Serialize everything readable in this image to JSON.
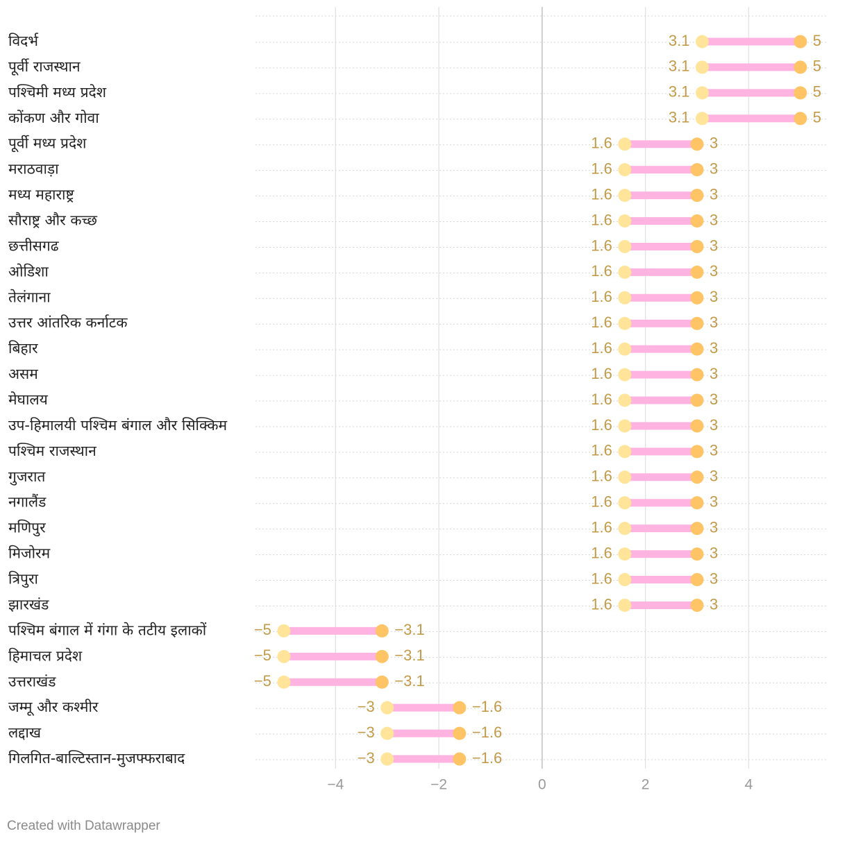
{
  "chart_data": {
    "type": "range-dot",
    "title": "",
    "xlabel": "",
    "ylabel": "",
    "xlim": [
      -5.55,
      5.5
    ],
    "xticks": [
      -4,
      -2,
      0,
      2,
      4
    ],
    "xtick_labels": [
      "−4",
      "−2",
      "0",
      "2",
      "4"
    ],
    "colors": {
      "start_dot": "#ffe49a",
      "end_dot": "#ffc466",
      "range_bar": "#ffb3e0",
      "value_label": "#c29a48",
      "row_label": "#222222"
    },
    "rows": [
      {
        "label": "विदर्भ",
        "start": 3.1,
        "end": 5,
        "start_label": "3.1",
        "end_label": "5"
      },
      {
        "label": "पूर्वी राजस्थान",
        "start": 3.1,
        "end": 5,
        "start_label": "3.1",
        "end_label": "5"
      },
      {
        "label": "पश्चिमी मध्य प्रदेश",
        "start": 3.1,
        "end": 5,
        "start_label": "3.1",
        "end_label": "5"
      },
      {
        "label": "कोंकण और गोवा",
        "start": 3.1,
        "end": 5,
        "start_label": "3.1",
        "end_label": "5"
      },
      {
        "label": "पूर्वी मध्य प्रदेश",
        "start": 1.6,
        "end": 3,
        "start_label": "1.6",
        "end_label": "3"
      },
      {
        "label": "मराठवाड़ा",
        "start": 1.6,
        "end": 3,
        "start_label": "1.6",
        "end_label": "3"
      },
      {
        "label": "मध्य महाराष्ट्र",
        "start": 1.6,
        "end": 3,
        "start_label": "1.6",
        "end_label": "3"
      },
      {
        "label": "सौराष्ट्र और कच्छ",
        "start": 1.6,
        "end": 3,
        "start_label": "1.6",
        "end_label": "3"
      },
      {
        "label": "छत्तीसगढ",
        "start": 1.6,
        "end": 3,
        "start_label": "1.6",
        "end_label": "3"
      },
      {
        "label": "ओडिशा",
        "start": 1.6,
        "end": 3,
        "start_label": "1.6",
        "end_label": "3"
      },
      {
        "label": "तेलंगाना",
        "start": 1.6,
        "end": 3,
        "start_label": "1.6",
        "end_label": "3"
      },
      {
        "label": "उत्तर आंतरिक कर्नाटक",
        "start": 1.6,
        "end": 3,
        "start_label": "1.6",
        "end_label": "3"
      },
      {
        "label": "बिहार",
        "start": 1.6,
        "end": 3,
        "start_label": "1.6",
        "end_label": "3"
      },
      {
        "label": "असम",
        "start": 1.6,
        "end": 3,
        "start_label": "1.6",
        "end_label": "3"
      },
      {
        "label": "मेघालय",
        "start": 1.6,
        "end": 3,
        "start_label": "1.6",
        "end_label": "3"
      },
      {
        "label": "उप-हिमालयी पश्चिम बंगाल और सिक्किम",
        "start": 1.6,
        "end": 3,
        "start_label": "1.6",
        "end_label": "3"
      },
      {
        "label": "पश्चिम राजस्थान",
        "start": 1.6,
        "end": 3,
        "start_label": "1.6",
        "end_label": "3"
      },
      {
        "label": "गुजरात",
        "start": 1.6,
        "end": 3,
        "start_label": "1.6",
        "end_label": "3"
      },
      {
        "label": "नगालैंड",
        "start": 1.6,
        "end": 3,
        "start_label": "1.6",
        "end_label": "3"
      },
      {
        "label": "मणिपुर",
        "start": 1.6,
        "end": 3,
        "start_label": "1.6",
        "end_label": "3"
      },
      {
        "label": "मिजोरम",
        "start": 1.6,
        "end": 3,
        "start_label": "1.6",
        "end_label": "3"
      },
      {
        "label": "त्रिपुरा",
        "start": 1.6,
        "end": 3,
        "start_label": "1.6",
        "end_label": "3"
      },
      {
        "label": "झारखंड",
        "start": 1.6,
        "end": 3,
        "start_label": "1.6",
        "end_label": "3"
      },
      {
        "label": "पश्चिम बंगाल में गंगा के तटीय इलाकों",
        "start": -5,
        "end": -3.1,
        "start_label": "−5",
        "end_label": "−3.1"
      },
      {
        "label": "हिमाचल प्रदेश",
        "start": -5,
        "end": -3.1,
        "start_label": "−5",
        "end_label": "−3.1"
      },
      {
        "label": "उत्तराखंड",
        "start": -5,
        "end": -3.1,
        "start_label": "−5",
        "end_label": "−3.1"
      },
      {
        "label": "जम्मू और कश्मीर",
        "start": -3,
        "end": -1.6,
        "start_label": "−3",
        "end_label": "−1.6"
      },
      {
        "label": "लद्दाख",
        "start": -3,
        "end": -1.6,
        "start_label": "−3",
        "end_label": "−1.6"
      },
      {
        "label": "गिलगित-बाल्टिस्तान-मुजफ्फराबाद",
        "start": -3,
        "end": -1.6,
        "start_label": "−3",
        "end_label": "−1.6"
      }
    ]
  },
  "footer": {
    "credit": "Created with Datawrapper"
  }
}
